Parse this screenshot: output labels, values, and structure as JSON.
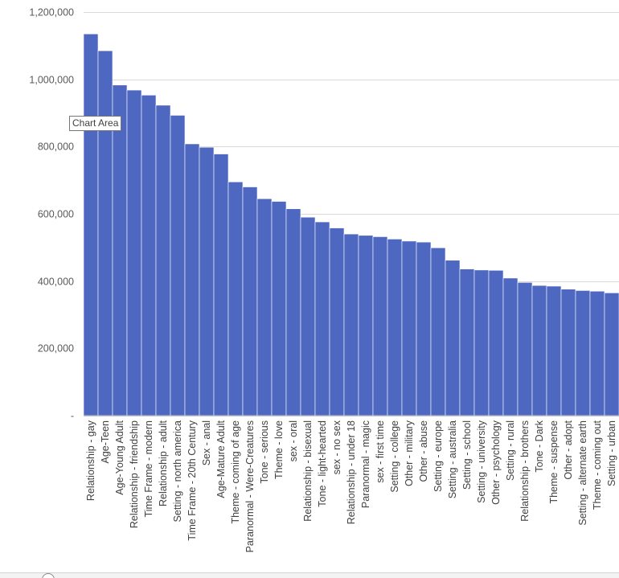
{
  "tooltip": {
    "text": "Chart Area"
  },
  "colors": {
    "bar": "#4e67c0",
    "grid": "#d9d9d9",
    "axis": "#bfbfbf"
  },
  "chart_data": {
    "type": "bar",
    "title": "",
    "xlabel": "",
    "ylabel": "",
    "ylim": [
      0,
      1200000
    ],
    "yticks": [
      {
        "value": 0,
        "label": "-"
      },
      {
        "value": 200000,
        "label": "200,000"
      },
      {
        "value": 400000,
        "label": "400,000"
      },
      {
        "value": 600000,
        "label": "600,000"
      },
      {
        "value": 800000,
        "label": "800,000"
      },
      {
        "value": 1000000,
        "label": "1,000,000"
      },
      {
        "value": 1200000,
        "label": "1,200,000"
      }
    ],
    "grid": true,
    "legend": "none",
    "categories": [
      "Relationship - gay",
      "Age-Teen",
      "Age-Young Adult",
      "Relationship - friendship",
      "Time Frame - modern",
      "Relationship - adult",
      "Setting - north america",
      "Time Frame - 20th Century",
      "Sex - anal",
      "Age-Mature Adult",
      "Theme - coming of age",
      "Paranormal - Were-Creatures",
      "Tone - serious",
      "Theme - love",
      "sex - oral",
      "Relationship - bisexual",
      "Tone - light-hearted",
      "sex - no sex",
      "Relationship - under 18",
      "Paranormal - magic",
      "sex - first time",
      "Setting - college",
      "Other - military",
      "Other - abuse",
      "Setting - europe",
      "Setting - australia",
      "Setting - school",
      "Setting - university",
      "Other - psychology",
      "Setting - rural",
      "Relationship - brothers",
      "Tone - Dark",
      "Theme - suspense",
      "Other - adopt",
      "Setting - alternate earth",
      "Theme - coming out",
      "Setting - urban"
    ],
    "values": [
      1135000,
      1085000,
      983000,
      968000,
      953000,
      923000,
      893000,
      808000,
      798000,
      778000,
      695000,
      680000,
      645000,
      637000,
      615000,
      590000,
      576000,
      558000,
      540000,
      536000,
      532000,
      525000,
      519000,
      516000,
      499000,
      462000,
      436000,
      433000,
      432000,
      409000,
      396000,
      387000,
      385000,
      376000,
      372000,
      370000,
      365000
    ]
  }
}
